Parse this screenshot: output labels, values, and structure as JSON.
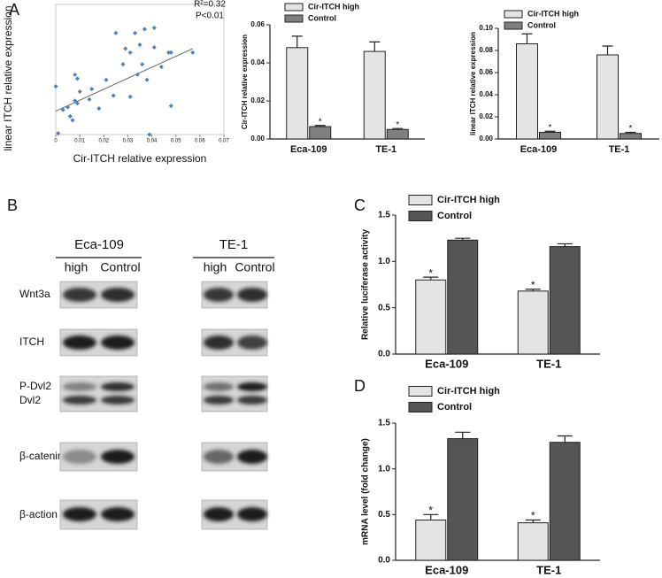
{
  "panels": [
    "A",
    "B",
    "C",
    "D"
  ],
  "blot": {
    "groups": [
      {
        "name": "Eca-109",
        "lanes": [
          "high",
          "Control"
        ]
      },
      {
        "name": "TE-1",
        "lanes": [
          "high",
          "Control"
        ]
      }
    ],
    "rows": [
      "Wnt3a",
      "ITCH",
      "P-Dvl2",
      "Dvl2",
      "β-catenin",
      "β-action"
    ]
  },
  "chart_data": [
    {
      "type": "scatter",
      "x_label": "Cir-ITCH relative expression",
      "y_label": "linear ITCH relative expression",
      "annotations": [
        "R²=0.32",
        "P<0.01"
      ],
      "color": "#4f81bd",
      "x": [
        0,
        0.001,
        0.003,
        0.005,
        0.006,
        0.007,
        0.008,
        0.008,
        0.009,
        0.009,
        0.01,
        0.014,
        0.015,
        0.018,
        0.021,
        0.025,
        0.024,
        0.028,
        0.029,
        0.031,
        0.031,
        0.033,
        0.034,
        0.035,
        0.036,
        0.037,
        0.038,
        0.041,
        0.039,
        0.041,
        0.044,
        0.047,
        0.048,
        0.048,
        0.057
      ],
      "values": [
        0.37,
        0.01,
        0.19,
        0.21,
        0.14,
        0.11,
        0.26,
        0.46,
        0.24,
        0.43,
        0.33,
        0.27,
        0.35,
        0.2,
        0.42,
        0.78,
        0.3,
        0.54,
        0.66,
        0.29,
        0.63,
        0.78,
        0.46,
        0.69,
        0.54,
        0.81,
        0.42,
        0.67,
        0,
        0.82,
        0.52,
        0.63,
        0.22,
        0.63,
        0.63
      ],
      "fit_line": {
        "x": [
          0,
          0.057
        ],
        "y": [
          0.18,
          0.66
        ]
      },
      "fit_color": "#666666",
      "xlim": [
        0,
        0.07
      ],
      "xticks": [
        0,
        0.01,
        0.02,
        0.03,
        0.04,
        0.05,
        0.06,
        0.07
      ],
      "ylim": [
        0,
        1
      ]
    },
    {
      "type": "bar",
      "y_label": "Cir-ITCH relative expression",
      "categories": [
        "Eca-109",
        "TE-1"
      ],
      "legend": "top-left",
      "series": [
        {
          "name": "Cir-ITCH high",
          "color": "#e4e4e4",
          "values": [
            0.048,
            0.046
          ],
          "errors": [
            0.006,
            0.005
          ]
        },
        {
          "name": "Control",
          "color": "#808080",
          "values": [
            0.0065,
            0.005
          ],
          "errors": [
            0.0006,
            0.0005
          ],
          "labels": [
            "*",
            "*"
          ]
        }
      ],
      "ylim": [
        0,
        0.06
      ],
      "yticks": [
        {
          "value": 0,
          "label": "0.00"
        },
        0.02,
        0.04,
        0.06
      ]
    },
    {
      "type": "bar",
      "y_label": "linear ITCH relative expression",
      "categories": [
        "Eca-109",
        "TE-1"
      ],
      "legend": "top-left",
      "series": [
        {
          "name": "Cir-ITCH high",
          "color": "#e4e4e4",
          "values": [
            0.086,
            0.076
          ],
          "errors": [
            0.009,
            0.008
          ]
        },
        {
          "name": "Control",
          "color": "#808080",
          "values": [
            0.006,
            0.005
          ],
          "errors": [
            0.001,
            0.001
          ],
          "labels": [
            "*",
            "*"
          ]
        }
      ],
      "ylim": [
        0,
        0.1
      ],
      "yticks": [
        {
          "value": 0,
          "label": "0.00"
        },
        0.02,
        0.04,
        0.06,
        0.08,
        {
          "value": 0.1,
          "label": "0.10"
        }
      ]
    },
    {
      "type": "bar",
      "y_label": "Relative luciferase activity",
      "categories": [
        "Eca-109",
        "TE-1"
      ],
      "legend": "top-left",
      "series": [
        {
          "name": "Cir-ITCH high",
          "color": "#e4e4e4",
          "values": [
            0.8,
            0.68
          ],
          "errors": [
            0.03,
            0.02
          ],
          "labels": [
            "*",
            "*"
          ]
        },
        {
          "name": "Control",
          "color": "#555555",
          "values": [
            1.23,
            1.16
          ],
          "errors": [
            0.02,
            0.03
          ]
        }
      ],
      "ylim": [
        0,
        1.5
      ],
      "yticks": [
        {
          "value": 0,
          "label": "0.0"
        },
        0.5,
        {
          "value": 1,
          "label": "1.0"
        },
        1.5
      ]
    },
    {
      "type": "bar",
      "y_label": "mRNA level (fold change)",
      "categories": [
        "Eca-109",
        "TE-1"
      ],
      "legend": "top-left",
      "series": [
        {
          "name": "Cir-ITCH high",
          "color": "#e4e4e4",
          "values": [
            0.44,
            0.41
          ],
          "errors": [
            0.06,
            0.03
          ],
          "labels": [
            "*",
            "*"
          ]
        },
        {
          "name": "Control",
          "color": "#555555",
          "values": [
            1.33,
            1.29
          ],
          "errors": [
            0.07,
            0.07
          ]
        }
      ],
      "ylim": [
        0,
        1.5
      ],
      "yticks": [
        {
          "value": 0,
          "label": "0.0"
        },
        0.5,
        {
          "value": 1,
          "label": "1.0"
        },
        1.5
      ]
    }
  ]
}
